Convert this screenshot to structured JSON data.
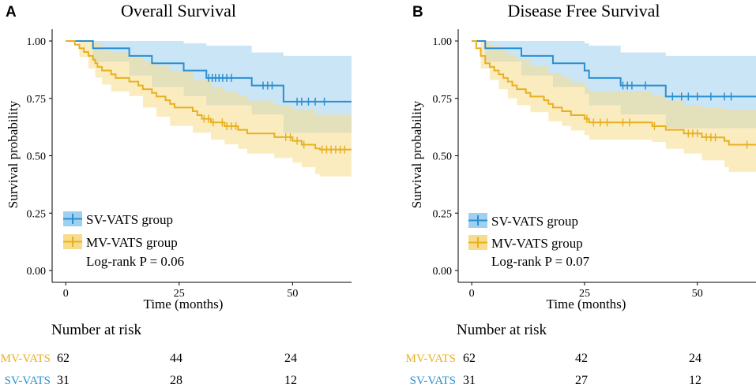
{
  "chart_data": [
    {
      "type": "line",
      "panel_label": "A",
      "title": "Overall Survival",
      "xlabel": "Time (months)",
      "ylabel": "Survival probability",
      "xlim": [
        -3,
        63
      ],
      "ylim": [
        0,
        1
      ],
      "xticks": [
        0,
        25,
        50
      ],
      "xtick_labels": [
        "0",
        "25",
        "50"
      ],
      "yticks": [
        0,
        0.25,
        0.5,
        0.75,
        1
      ],
      "ytick_labels": [
        "0.00",
        "0.25",
        "0.50",
        "0.75",
        "1.00"
      ],
      "legend": {
        "position": "bottom-left",
        "pvalue": "Log-rank P = 0.06"
      },
      "series": [
        {
          "name": "SV-VATS group",
          "color": "#2b8fd1",
          "band_color": "#9fd0ef",
          "steps": [
            [
              0,
              1.0
            ],
            [
              6,
              0.968
            ],
            [
              14,
              0.935
            ],
            [
              19,
              0.903
            ],
            [
              26,
              0.871
            ],
            [
              31,
              0.839
            ],
            [
              41,
              0.806
            ],
            [
              48,
              0.736
            ],
            [
              63,
              0.736
            ]
          ],
          "lower": [
            [
              0,
              1.0
            ],
            [
              6,
              0.91
            ],
            [
              14,
              0.85
            ],
            [
              19,
              0.8
            ],
            [
              26,
              0.76
            ],
            [
              31,
              0.72
            ],
            [
              41,
              0.68
            ],
            [
              48,
              0.6
            ],
            [
              63,
              0.59
            ]
          ],
          "upper": [
            [
              0,
              1.0
            ],
            [
              6,
              1.0
            ],
            [
              14,
              1.0
            ],
            [
              19,
              1.0
            ],
            [
              26,
              0.99
            ],
            [
              31,
              0.98
            ],
            [
              41,
              0.95
            ],
            [
              48,
              0.935
            ],
            [
              63,
              0.935
            ]
          ],
          "censors": [
            31.5,
            32.3,
            33,
            33.8,
            34.6,
            35.5,
            36.5,
            43.5,
            44.5,
            45.5,
            51,
            52,
            53.5,
            55,
            57
          ]
        },
        {
          "name": "MV-VATS group",
          "color": "#e8b021",
          "band_color": "#f7dc8d",
          "steps": [
            [
              0,
              1.0
            ],
            [
              2,
              0.984
            ],
            [
              3,
              0.968
            ],
            [
              4,
              0.952
            ],
            [
              5,
              0.935
            ],
            [
              6,
              0.919
            ],
            [
              6.5,
              0.903
            ],
            [
              7,
              0.887
            ],
            [
              8,
              0.871
            ],
            [
              10,
              0.855
            ],
            [
              11,
              0.839
            ],
            [
              14,
              0.823
            ],
            [
              16,
              0.806
            ],
            [
              17,
              0.79
            ],
            [
              19,
              0.774
            ],
            [
              20,
              0.758
            ],
            [
              22,
              0.742
            ],
            [
              23,
              0.726
            ],
            [
              24,
              0.71
            ],
            [
              28,
              0.694
            ],
            [
              29,
              0.677
            ],
            [
              30,
              0.661
            ],
            [
              32,
              0.645
            ],
            [
              35,
              0.629
            ],
            [
              38,
              0.613
            ],
            [
              40,
              0.597
            ],
            [
              46,
              0.581
            ],
            [
              50,
              0.565
            ],
            [
              52,
              0.548
            ],
            [
              55,
              0.532
            ],
            [
              56,
              0.527
            ],
            [
              63,
              0.527
            ]
          ],
          "lower": [
            [
              0,
              1.0
            ],
            [
              3,
              0.93
            ],
            [
              5,
              0.88
            ],
            [
              6.5,
              0.84
            ],
            [
              8,
              0.81
            ],
            [
              10,
              0.78
            ],
            [
              14,
              0.76
            ],
            [
              17,
              0.71
            ],
            [
              20,
              0.67
            ],
            [
              23,
              0.63
            ],
            [
              28,
              0.6
            ],
            [
              32,
              0.57
            ],
            [
              35,
              0.55
            ],
            [
              38,
              0.53
            ],
            [
              40,
              0.51
            ],
            [
              46,
              0.49
            ],
            [
              50,
              0.47
            ],
            [
              52,
              0.45
            ],
            [
              55,
              0.42
            ],
            [
              56,
              0.41
            ],
            [
              63,
              0.4
            ]
          ],
          "upper": [
            [
              0,
              1.0
            ],
            [
              4,
              1.0
            ],
            [
              6,
              0.99
            ],
            [
              8,
              0.96
            ],
            [
              10,
              0.95
            ],
            [
              14,
              0.93
            ],
            [
              17,
              0.91
            ],
            [
              20,
              0.89
            ],
            [
              23,
              0.87
            ],
            [
              28,
              0.83
            ],
            [
              32,
              0.8
            ],
            [
              35,
              0.78
            ],
            [
              38,
              0.76
            ],
            [
              40,
              0.74
            ],
            [
              46,
              0.72
            ],
            [
              50,
              0.7
            ],
            [
              55,
              0.68
            ],
            [
              63,
              0.68
            ]
          ],
          "censors": [
            30.5,
            31.5,
            32.5,
            34.5,
            35.5,
            36.5,
            37.5,
            48.5,
            49.5,
            51,
            52.5,
            56.5,
            57.5,
            58.5,
            59.5,
            60.5,
            61.5
          ]
        }
      ],
      "risk_table": {
        "title": "Number at risk",
        "times": [
          0,
          25,
          50
        ],
        "rows": [
          {
            "label": "MV-VATS",
            "values": [
              "62",
              "44",
              "24"
            ]
          },
          {
            "label": "SV-VATS",
            "values": [
              "31",
              "28",
              "12"
            ]
          }
        ]
      }
    },
    {
      "type": "line",
      "panel_label": "B",
      "title": "Disease Free Survival",
      "xlabel": "Time (months)",
      "ylabel": "Survival probability",
      "xlim": [
        -3,
        63
      ],
      "ylim": [
        0,
        1
      ],
      "xticks": [
        0,
        25,
        50
      ],
      "xtick_labels": [
        "0",
        "25",
        "50"
      ],
      "yticks": [
        0,
        0.25,
        0.5,
        0.75,
        1
      ],
      "ytick_labels": [
        "0.00",
        "0.25",
        "0.50",
        "0.75",
        "1.00"
      ],
      "legend": {
        "position": "bottom-left",
        "pvalue": "Log-rank P = 0.07"
      },
      "series": [
        {
          "name": "SV-VATS group",
          "color": "#2b8fd1",
          "band_color": "#9fd0ef",
          "steps": [
            [
              0,
              1.0
            ],
            [
              3,
              0.968
            ],
            [
              11,
              0.935
            ],
            [
              18,
              0.903
            ],
            [
              25,
              0.871
            ],
            [
              26,
              0.839
            ],
            [
              33,
              0.806
            ],
            [
              43,
              0.758
            ],
            [
              63,
              0.758
            ]
          ],
          "lower": [
            [
              0,
              1.0
            ],
            [
              3,
              0.91
            ],
            [
              11,
              0.85
            ],
            [
              18,
              0.8
            ],
            [
              25,
              0.77
            ],
            [
              26,
              0.72
            ],
            [
              33,
              0.68
            ],
            [
              43,
              0.62
            ],
            [
              63,
              0.61
            ]
          ],
          "upper": [
            [
              0,
              1.0
            ],
            [
              3,
              1.0
            ],
            [
              11,
              1.0
            ],
            [
              18,
              1.0
            ],
            [
              25,
              0.99
            ],
            [
              26,
              0.98
            ],
            [
              33,
              0.95
            ],
            [
              43,
              0.935
            ],
            [
              63,
              0.935
            ]
          ],
          "censors": [
            33.5,
            34.5,
            35.5,
            38.5,
            44.5,
            46.5,
            48,
            50,
            53,
            56,
            57.5
          ]
        },
        {
          "name": "MV-VATS group",
          "color": "#e8b021",
          "band_color": "#f7dc8d",
          "steps": [
            [
              0,
              1.0
            ],
            [
              1,
              0.968
            ],
            [
              2,
              0.935
            ],
            [
              3,
              0.903
            ],
            [
              4,
              0.887
            ],
            [
              5,
              0.871
            ],
            [
              6,
              0.855
            ],
            [
              7,
              0.839
            ],
            [
              8,
              0.823
            ],
            [
              9,
              0.806
            ],
            [
              10,
              0.79
            ],
            [
              12,
              0.774
            ],
            [
              13,
              0.758
            ],
            [
              16,
              0.742
            ],
            [
              17,
              0.726
            ],
            [
              18,
              0.71
            ],
            [
              20,
              0.694
            ],
            [
              22,
              0.677
            ],
            [
              25,
              0.661
            ],
            [
              26,
              0.645
            ],
            [
              40,
              0.629
            ],
            [
              43,
              0.613
            ],
            [
              47,
              0.597
            ],
            [
              51,
              0.581
            ],
            [
              53,
              0.58
            ],
            [
              56,
              0.565
            ],
            [
              57,
              0.548
            ],
            [
              63,
              0.548
            ]
          ],
          "lower": [
            [
              0,
              1.0
            ],
            [
              2,
              0.88
            ],
            [
              4,
              0.83
            ],
            [
              6,
              0.79
            ],
            [
              8,
              0.75
            ],
            [
              10,
              0.72
            ],
            [
              13,
              0.69
            ],
            [
              17,
              0.65
            ],
            [
              20,
              0.63
            ],
            [
              22,
              0.61
            ],
            [
              25,
              0.59
            ],
            [
              26,
              0.57
            ],
            [
              40,
              0.56
            ],
            [
              43,
              0.53
            ],
            [
              47,
              0.51
            ],
            [
              51,
              0.48
            ],
            [
              56,
              0.45
            ],
            [
              57,
              0.43
            ],
            [
              63,
              0.42
            ]
          ],
          "upper": [
            [
              0,
              1.0
            ],
            [
              2,
              1.0
            ],
            [
              4,
              0.98
            ],
            [
              6,
              0.96
            ],
            [
              8,
              0.94
            ],
            [
              10,
              0.92
            ],
            [
              13,
              0.89
            ],
            [
              17,
              0.86
            ],
            [
              20,
              0.84
            ],
            [
              22,
              0.82
            ],
            [
              25,
              0.8
            ],
            [
              26,
              0.78
            ],
            [
              40,
              0.76
            ],
            [
              43,
              0.74
            ],
            [
              47,
              0.72
            ],
            [
              51,
              0.71
            ],
            [
              56,
              0.7
            ],
            [
              63,
              0.69
            ]
          ],
          "censors": [
            25.5,
            27,
            28.5,
            30,
            33.5,
            35,
            40.5,
            48,
            49,
            50,
            52,
            53,
            54,
            61
          ]
        }
      ],
      "risk_table": {
        "title": "Number at risk",
        "times": [
          0,
          25,
          50
        ],
        "rows": [
          {
            "label": "MV-VATS",
            "values": [
              "62",
              "42",
              "24"
            ]
          },
          {
            "label": "SV-VATS",
            "values": [
              "31",
              "27",
              "12"
            ]
          }
        ]
      }
    }
  ]
}
